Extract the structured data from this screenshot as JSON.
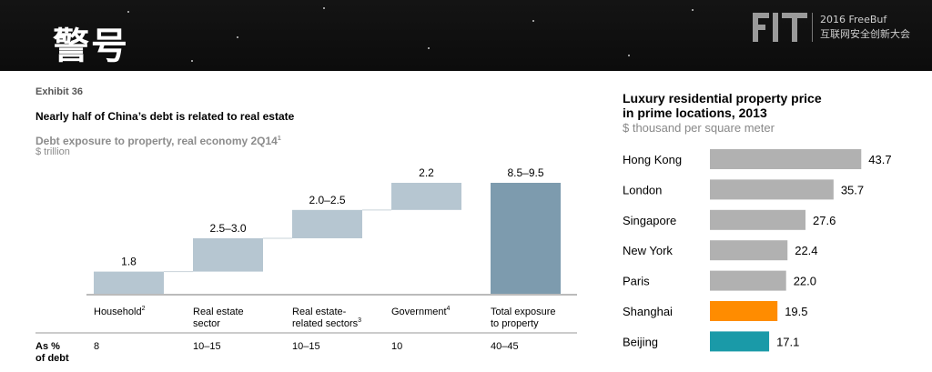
{
  "header": {
    "title": "警号",
    "logo_text": "FIT",
    "logo_line1": "2016 FreeBuf",
    "logo_line2": "互联网安全创新大会"
  },
  "left": {
    "exhibit": "Exhibit 36",
    "headline": "Nearly half of China’s debt is related to real estate",
    "subtitle": "Debt exposure to property, real economy 2Q14",
    "subtitle_sup": "1",
    "unit": "$ trillion",
    "row_label_line1": "As %",
    "row_label_line2": "of debt"
  },
  "right": {
    "title_line1": "Luxury residential property price",
    "title_line2": "in prime locations, 2013",
    "unit": "$ thousand per square meter"
  },
  "colors": {
    "waterfall_step": "#b6c6d1",
    "waterfall_total": "#7d9bae",
    "bar_gray": "#b1b1b1",
    "bar_shanghai": "#ff8c00",
    "bar_beijing": "#1a9aa8"
  },
  "chart_data": [
    {
      "type": "bar",
      "subtype": "waterfall",
      "title": "Debt exposure to property, real economy 2Q14",
      "ylabel": "$ trillion",
      "ylim": [
        0,
        9.5
      ],
      "categories": [
        {
          "line1": "Household",
          "sup": "2",
          "line2": ""
        },
        {
          "line1": "Real estate",
          "sup": "",
          "line2": "sector"
        },
        {
          "line1": "Real estate-",
          "sup": "",
          "line2": "related sectors",
          "sup2": "3"
        },
        {
          "line1": "Government",
          "sup": "4",
          "line2": ""
        },
        {
          "line1": "Total exposure",
          "sup": "",
          "line2": "to property"
        }
      ],
      "value_labels": [
        "1.8",
        "2.5–3.0",
        "2.0–2.5",
        "2.2",
        "8.5–9.5"
      ],
      "segments": [
        {
          "start": 0.0,
          "end": 1.8
        },
        {
          "start": 1.8,
          "end": 4.5
        },
        {
          "start": 4.5,
          "end": 6.8
        },
        {
          "start": 6.8,
          "end": 9.0
        },
        {
          "start": 0.0,
          "end": 9.0
        }
      ],
      "pct_of_debt": [
        "8",
        "10–15",
        "10–15",
        "10",
        "40–45"
      ]
    },
    {
      "type": "bar",
      "orientation": "horizontal",
      "title": "Luxury residential property price in prime locations, 2013",
      "xlabel": "$ thousand per square meter",
      "xlim": [
        0,
        50
      ],
      "categories": [
        "Hong Kong",
        "London",
        "Singapore",
        "New York",
        "Paris",
        "Shanghai",
        "Beijing"
      ],
      "values": [
        43.7,
        35.7,
        27.6,
        22.4,
        22.0,
        19.5,
        17.1
      ],
      "value_labels": [
        "43.7",
        "35.7",
        "27.6",
        "22.4",
        "22.0",
        "19.5",
        "17.1"
      ]
    }
  ]
}
